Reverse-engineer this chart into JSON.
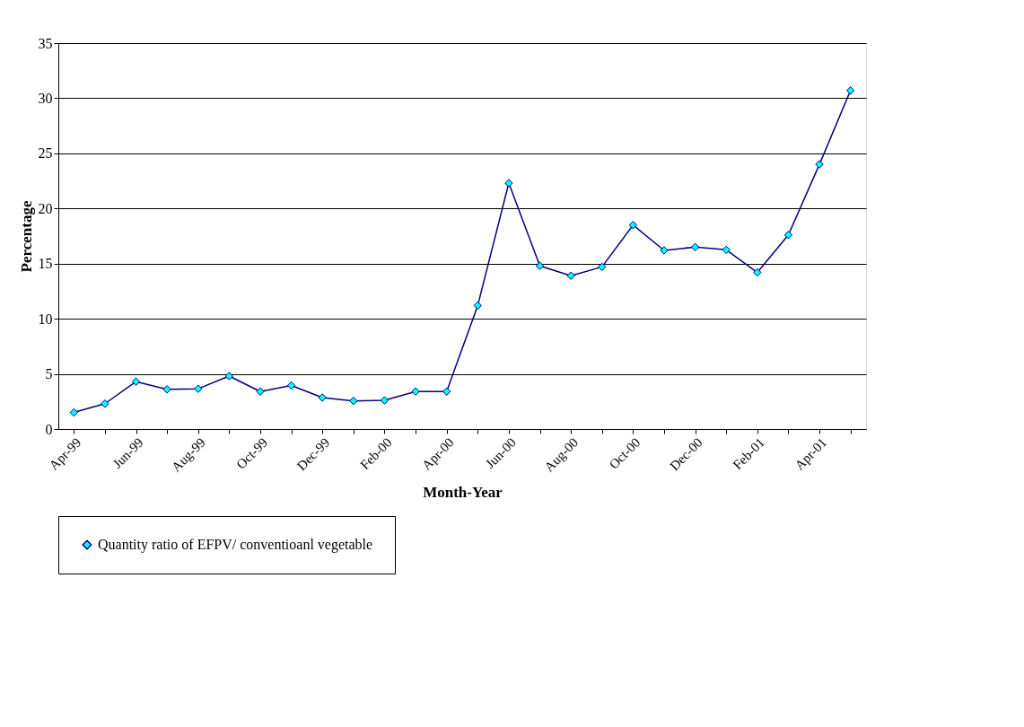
{
  "chart_data": {
    "type": "line",
    "xlabel": "Month-Year",
    "ylabel": "Percentage",
    "categories": [
      "Apr-99",
      null,
      "Jun-99",
      null,
      "Aug-99",
      null,
      "Oct-99",
      null,
      "Dec-99",
      null,
      "Feb-00",
      null,
      "Apr-00",
      null,
      "Jun-00",
      null,
      "Aug-00",
      null,
      "Oct-00",
      null,
      "Dec-00",
      null,
      "Feb-01",
      null,
      "Apr-01",
      null
    ],
    "series": [
      {
        "name": "Quantity ratio of EFPV/ conventioanl vegetable",
        "color": "#000080",
        "values": [
          1.5,
          2.3,
          4.3,
          3.6,
          3.65,
          4.8,
          3.4,
          3.95,
          2.85,
          2.55,
          2.6,
          3.4,
          3.4,
          11.2,
          22.3,
          14.8,
          13.9,
          14.7,
          18.5,
          16.2,
          16.5,
          16.25,
          14.2,
          17.6,
          24.0,
          30.7
        ]
      }
    ],
    "ylim": [
      0,
      35
    ],
    "yticks": [
      0,
      5,
      10,
      15,
      20,
      25,
      30,
      35
    ],
    "grid": "y",
    "legend": "bottom",
    "marker": "diamond",
    "line_style": "solid"
  }
}
